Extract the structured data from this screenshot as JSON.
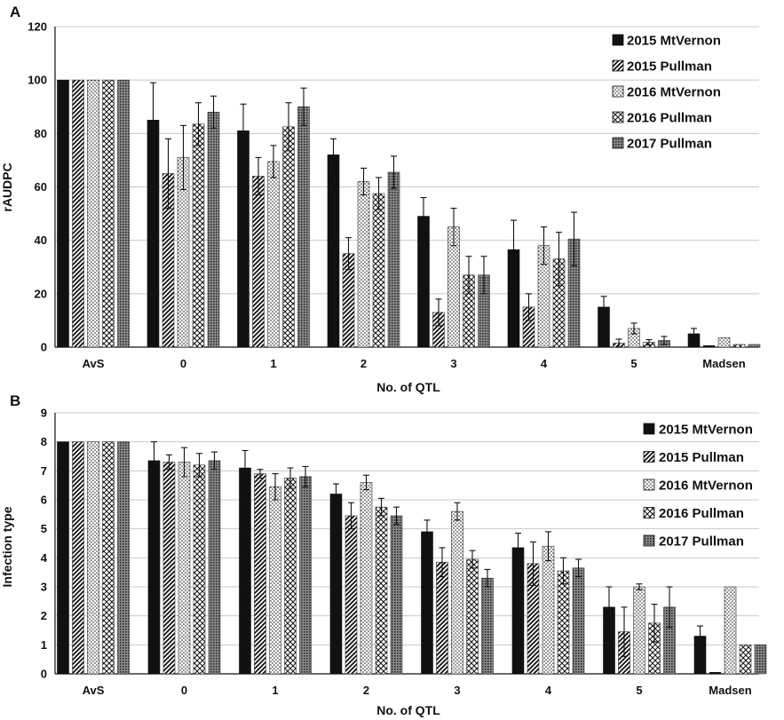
{
  "figure": {
    "patterns": {
      "solid": "solid",
      "diagonal": "diagonal-hatch",
      "dots": "dotted",
      "cross": "diamond-crosshatch",
      "dense": "dense-dark-dots"
    },
    "colors": {
      "ink": "#111111",
      "grid": "#c8c8c8",
      "background": "#ffffff"
    }
  },
  "chart_data": [
    {
      "panel": "A",
      "type": "bar",
      "xlabel": "No. of QTL",
      "ylabel": "rAUDPC",
      "ylim": [
        0,
        120
      ],
      "yticks": [
        0,
        20,
        40,
        60,
        80,
        100,
        120
      ],
      "grid": true,
      "legend_position": "top-right",
      "categories": [
        "AvS",
        "0",
        "1",
        "2",
        "3",
        "4",
        "5",
        "Madsen"
      ],
      "series": [
        {
          "name": "2015 MtVernon",
          "pattern": "solid",
          "values": [
            100,
            85,
            81,
            72,
            49,
            36.5,
            15,
            5
          ],
          "errors": [
            0,
            14,
            10,
            6,
            7,
            11,
            4,
            2
          ]
        },
        {
          "name": "2015 Pullman",
          "pattern": "diagonal",
          "values": [
            100,
            65,
            64,
            35,
            13,
            15,
            1.5,
            0
          ],
          "errors": [
            0,
            13,
            7,
            6,
            5,
            5,
            1.5,
            0
          ]
        },
        {
          "name": "2016 MtVernon",
          "pattern": "dots",
          "values": [
            100,
            71,
            69.5,
            62,
            45,
            38,
            7,
            3.5
          ],
          "errors": [
            0,
            12,
            6,
            5,
            7,
            7,
            2,
            0
          ]
        },
        {
          "name": "2016 Pullman",
          "pattern": "cross",
          "values": [
            100,
            83.5,
            82.5,
            57.5,
            27,
            33,
            1.8,
            1
          ],
          "errors": [
            0,
            8,
            9,
            6,
            7,
            10,
            1,
            0
          ]
        },
        {
          "name": "2017 Pullman",
          "pattern": "dense",
          "values": [
            100,
            88,
            90,
            65.5,
            27,
            40.5,
            2.5,
            1
          ],
          "errors": [
            0,
            6,
            7,
            6,
            7,
            10,
            1.5,
            0
          ]
        }
      ]
    },
    {
      "panel": "B",
      "type": "bar",
      "xlabel": "No. of QTL",
      "ylabel": "Infection type",
      "ylim": [
        0,
        9
      ],
      "yticks": [
        0,
        1,
        2,
        3,
        4,
        5,
        6,
        7,
        8,
        9
      ],
      "grid": true,
      "legend_position": "top-right",
      "categories": [
        "AvS",
        "0",
        "1",
        "2",
        "3",
        "4",
        "5",
        "Madsen"
      ],
      "series": [
        {
          "name": "2015 MtVernon",
          "pattern": "solid",
          "values": [
            8,
            7.35,
            7.1,
            6.2,
            4.9,
            4.35,
            2.3,
            1.3
          ],
          "errors": [
            0,
            0.65,
            0.6,
            0.35,
            0.4,
            0.5,
            0.7,
            0.35
          ]
        },
        {
          "name": "2015 Pullman",
          "pattern": "diagonal",
          "values": [
            8,
            7.3,
            6.9,
            5.45,
            3.85,
            3.8,
            1.45,
            0
          ],
          "errors": [
            0,
            0.25,
            0.15,
            0.45,
            0.5,
            0.75,
            0.85,
            0
          ]
        },
        {
          "name": "2016 MtVernon",
          "pattern": "dots",
          "values": [
            8,
            7.3,
            6.45,
            6.6,
            5.6,
            4.4,
            3.0,
            3.0
          ],
          "errors": [
            0,
            0.5,
            0.45,
            0.25,
            0.3,
            0.5,
            0.1,
            0
          ]
        },
        {
          "name": "2016 Pullman",
          "pattern": "cross",
          "values": [
            8,
            7.2,
            6.75,
            5.75,
            3.95,
            3.55,
            1.75,
            1
          ],
          "errors": [
            0,
            0.4,
            0.35,
            0.3,
            0.3,
            0.45,
            0.65,
            0
          ]
        },
        {
          "name": "2017 Pullman",
          "pattern": "dense",
          "values": [
            8,
            7.35,
            6.8,
            5.45,
            3.3,
            3.65,
            2.3,
            1
          ],
          "errors": [
            0,
            0.3,
            0.35,
            0.3,
            0.3,
            0.3,
            0.7,
            0
          ]
        }
      ]
    }
  ]
}
